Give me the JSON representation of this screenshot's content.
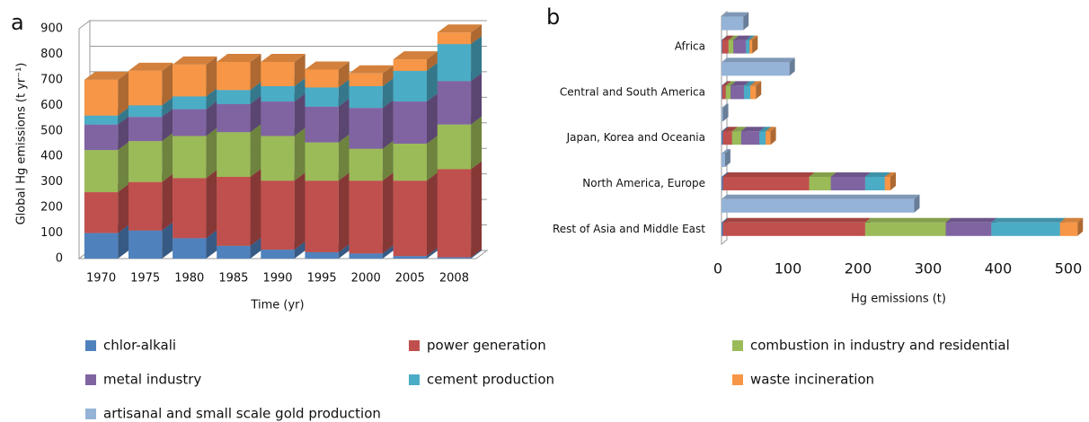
{
  "chart_data": [
    {
      "type": "bar",
      "label": "a",
      "y_label": "Global Hg emissions (t yr⁻¹)",
      "x_label": "Time (yr)",
      "categories": [
        "1970",
        "1975",
        "1980",
        "1985",
        "1990",
        "1995",
        "2000",
        "2005",
        "2008"
      ],
      "ylim": [
        0,
        900
      ],
      "yticks": [
        0,
        100,
        200,
        300,
        400,
        500,
        600,
        700,
        800,
        900
      ],
      "grid": true,
      "series": [
        {
          "name": "chlor-alkali",
          "color": "#4f81bd",
          "values": [
            100,
            110,
            80,
            50,
            35,
            25,
            20,
            10,
            5
          ]
        },
        {
          "name": "power generation",
          "color": "#c0504d",
          "values": [
            160,
            190,
            235,
            270,
            270,
            280,
            285,
            295,
            345
          ]
        },
        {
          "name": "combustion in industry and residential",
          "color": "#9bbb59",
          "values": [
            165,
            160,
            165,
            175,
            175,
            150,
            125,
            145,
            175
          ]
        },
        {
          "name": "metal industry",
          "color": "#8064a2",
          "values": [
            100,
            95,
            105,
            110,
            135,
            140,
            160,
            165,
            170
          ]
        },
        {
          "name": "cement production",
          "color": "#4bacc6",
          "values": [
            35,
            45,
            50,
            55,
            60,
            75,
            85,
            120,
            145
          ]
        },
        {
          "name": "waste incineration",
          "color": "#f79646",
          "values": [
            140,
            135,
            125,
            110,
            95,
            70,
            50,
            45,
            45
          ]
        }
      ]
    },
    {
      "type": "barh",
      "label": "b",
      "x_label": "Hg emissions (t)",
      "categories": [
        "Rest of Asia and Middle East",
        "North America, Europe",
        "Japan, Korea and Oceania",
        "Central and South America",
        "Africa"
      ],
      "xlim": [
        0,
        500
      ],
      "xticks": [
        0,
        100,
        200,
        300,
        400,
        500
      ],
      "grid": false,
      "series": [
        {
          "name": "chlor-alkali",
          "color": "#4f81bd",
          "values": [
            2,
            2,
            2,
            1,
            1
          ]
        },
        {
          "name": "power generation",
          "color": "#c0504d",
          "values": [
            203,
            123,
            13,
            5,
            9
          ]
        },
        {
          "name": "combustion in industry and residential",
          "color": "#9bbb59",
          "values": [
            115,
            31,
            13,
            7,
            7
          ]
        },
        {
          "name": "metal industry",
          "color": "#8064a2",
          "values": [
            65,
            49,
            26,
            19,
            18
          ]
        },
        {
          "name": "cement production",
          "color": "#4bacc6",
          "values": [
            98,
            28,
            9,
            9,
            5
          ]
        },
        {
          "name": "waste incineration",
          "color": "#f79646",
          "values": [
            25,
            8,
            7,
            8,
            4
          ]
        },
        {
          "name": "artisanal and small scale gold production",
          "color": "#95b3d7",
          "stacked": false,
          "values": [
            275,
            5,
            2,
            97,
            31
          ]
        }
      ]
    }
  ]
}
